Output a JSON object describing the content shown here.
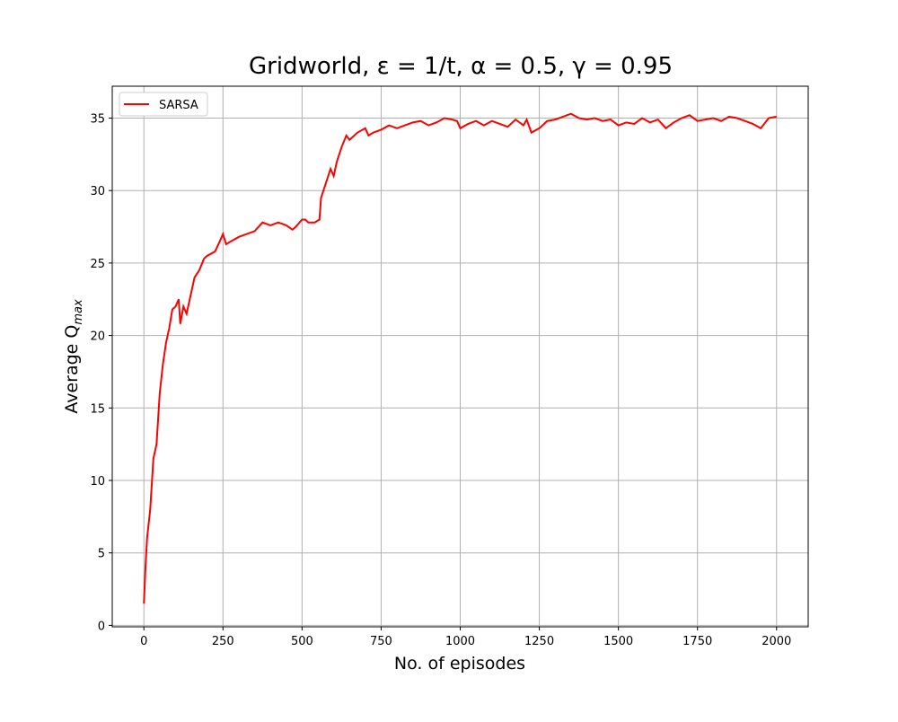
{
  "chart_data": {
    "type": "line",
    "title": "Gridworld, ε = 1/t, α = 0.5, γ = 0.95",
    "xlabel": "No. of episodes",
    "ylabel": "Average Q",
    "ylabel_subscript": "max",
    "x": [
      0,
      5,
      10,
      20,
      30,
      40,
      50,
      60,
      70,
      80,
      90,
      100,
      110,
      115,
      125,
      135,
      150,
      160,
      175,
      190,
      200,
      225,
      240,
      250,
      260,
      275,
      300,
      325,
      350,
      375,
      400,
      425,
      450,
      470,
      480,
      500,
      510,
      520,
      540,
      555,
      560,
      575,
      590,
      600,
      610,
      625,
      640,
      650,
      675,
      700,
      710,
      725,
      750,
      775,
      800,
      825,
      850,
      875,
      900,
      925,
      950,
      975,
      990,
      1000,
      1025,
      1050,
      1075,
      1100,
      1125,
      1150,
      1175,
      1200,
      1210,
      1225,
      1250,
      1275,
      1300,
      1325,
      1350,
      1375,
      1400,
      1425,
      1450,
      1475,
      1500,
      1525,
      1550,
      1575,
      1600,
      1625,
      1650,
      1675,
      1700,
      1725,
      1750,
      1775,
      1800,
      1825,
      1850,
      1875,
      1900,
      1925,
      1950,
      1975,
      2000
    ],
    "series": [
      {
        "name": "SARSA",
        "color": "#ff0000",
        "values": [
          1.5,
          4,
          6,
          8,
          11.5,
          12.5,
          16,
          18,
          19.5,
          20.5,
          21.8,
          22,
          22.5,
          20.8,
          22,
          21.5,
          23,
          24,
          24.5,
          25.3,
          25.5,
          25.8,
          26.5,
          27,
          26.3,
          26.5,
          26.8,
          27,
          27.2,
          27.8,
          27.6,
          27.8,
          27.6,
          27.3,
          27.5,
          28,
          28,
          27.8,
          27.8,
          28,
          29.5,
          30.5,
          31.5,
          31,
          32,
          33,
          33.8,
          33.5,
          34,
          34.3,
          33.8,
          34,
          34.2,
          34.5,
          34.3,
          34.5,
          34.7,
          34.8,
          34.5,
          34.7,
          35,
          34.9,
          34.8,
          34.3,
          34.6,
          34.8,
          34.5,
          34.8,
          34.6,
          34.4,
          34.9,
          34.5,
          34.9,
          34,
          34.3,
          34.8,
          34.9,
          35.1,
          35.3,
          35,
          34.9,
          35,
          34.8,
          34.9,
          34.5,
          34.7,
          34.6,
          35,
          34.7,
          34.9,
          34.3,
          34.7,
          35,
          35.2,
          34.8,
          34.9,
          35,
          34.8,
          35.1,
          35,
          34.8,
          34.6,
          34.3,
          35,
          35.1
        ]
      }
    ],
    "xlim": [
      -100,
      2100
    ],
    "xticks": [
      0,
      250,
      500,
      750,
      1000,
      1250,
      1500,
      1750,
      2000
    ],
    "ylim": [
      -0.1,
      37.2
    ],
    "yticks": [
      0,
      5,
      10,
      15,
      20,
      25,
      30,
      35
    ],
    "grid": true,
    "legend": "upper left"
  }
}
